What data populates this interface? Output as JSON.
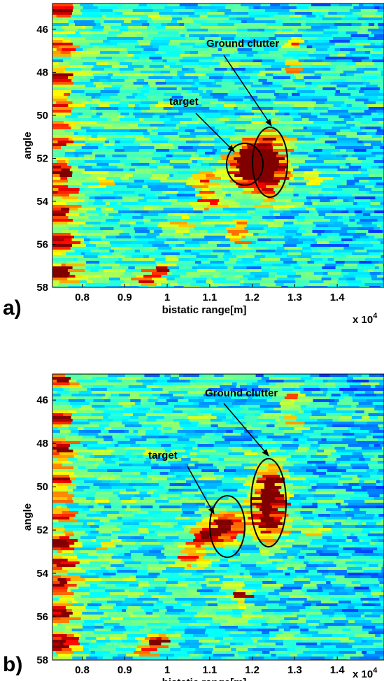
{
  "chart_data": [
    {
      "type": "heatmap",
      "panel_label": "a)",
      "x_label": "bistatic range[m]",
      "y_label": "angle",
      "x_multiplier": {
        "base": "x 10",
        "exponent": "4"
      },
      "xlim": [
        0.73,
        1.51
      ],
      "xticks": [
        0.8,
        0.9,
        1,
        1.1,
        1.2,
        1.3,
        1.4
      ],
      "ylim": [
        44.8,
        58
      ],
      "yticks": [
        46,
        48,
        50,
        52,
        54,
        56,
        58
      ],
      "y_reversed": true,
      "annotations": [
        {
          "text": "Ground clutter"
        },
        {
          "text": "target"
        }
      ]
    },
    {
      "type": "heatmap",
      "panel_label": "b)",
      "x_label": "bistatic range[m]",
      "y_label": "angle",
      "x_multiplier": {
        "base": "x 10",
        "exponent": "4"
      },
      "xlim": [
        0.73,
        1.51
      ],
      "xticks": [
        0.8,
        0.9,
        1,
        1.1,
        1.2,
        1.3,
        1.4
      ],
      "ylim": [
        44.8,
        58
      ],
      "yticks": [
        46,
        48,
        50,
        52,
        54,
        56,
        58
      ],
      "y_reversed": true,
      "annotations": [
        {
          "text": "Ground clutter"
        },
        {
          "text": "target"
        }
      ]
    }
  ]
}
